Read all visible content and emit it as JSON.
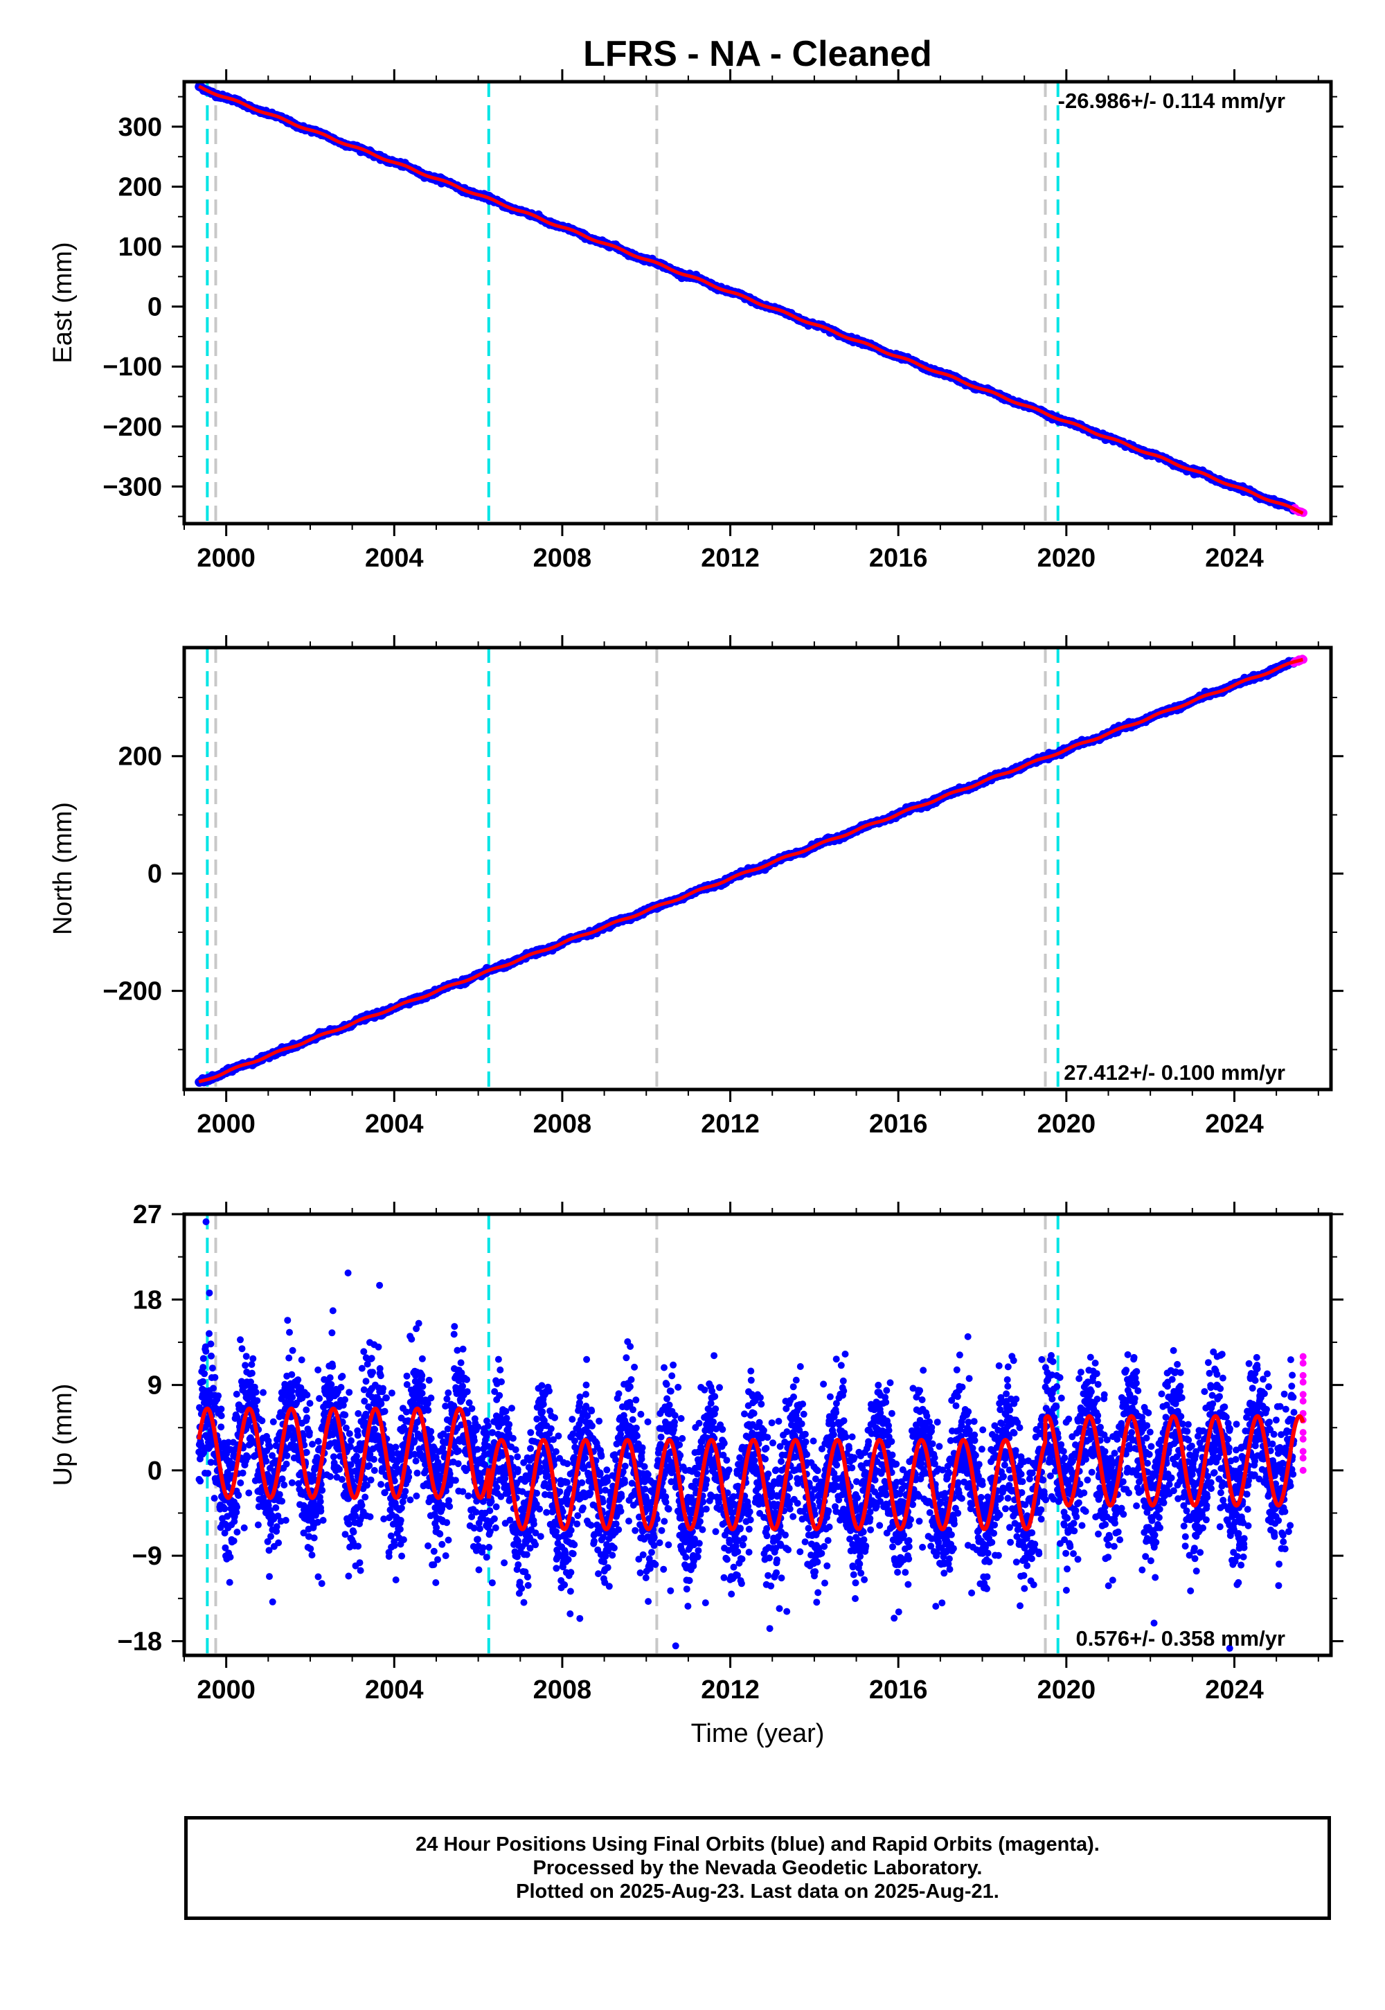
{
  "chart_data": {
    "type": "scatter",
    "title": "LFRS  - NA - Cleaned",
    "xlabel": "Time (year)",
    "xlim": [
      1999.0,
      2026.3
    ],
    "x_ticks": [
      2000,
      2004,
      2008,
      2012,
      2016,
      2020,
      2024
    ],
    "x_tick_labels": [
      "2000",
      "2004",
      "2008",
      "2012",
      "2016",
      "2020",
      "2024"
    ],
    "data_start": 1999.35,
    "data_end": 2025.64,
    "rapid_start": 2025.42,
    "grid": false,
    "vertical_lines": [
      {
        "x": 1999.55,
        "color": "#00e5e5",
        "style": "dashed"
      },
      {
        "x": 1999.75,
        "color": "#c8c8c8",
        "style": "dashed"
      },
      {
        "x": 2006.25,
        "color": "#00e5e5",
        "style": "dashed"
      },
      {
        "x": 2010.25,
        "color": "#c8c8c8",
        "style": "dashed"
      },
      {
        "x": 2019.5,
        "color": "#c8c8c8",
        "style": "dashed"
      },
      {
        "x": 2019.8,
        "color": "#00e5e5",
        "style": "dashed"
      }
    ],
    "colors": {
      "final": "#0000ff",
      "rapid": "#ff00ff",
      "model": "#ff0000",
      "frame": "#000000"
    },
    "panels": [
      {
        "key": "east",
        "ylabel": "East (mm)",
        "ylim": [
          -362,
          375
        ],
        "y_ticks": [
          300,
          200,
          100,
          0,
          -100,
          -200,
          -300
        ],
        "y_tick_labels": [
          "300",
          "200",
          "100",
          "0",
          "−100",
          "−200",
          "−300"
        ],
        "rate_label": "-26.986+/- 0.114 mm/yr",
        "rate_position": "top-right",
        "start_value": 366,
        "end_value": -344,
        "noise": 1.6,
        "seasonal_amp": 1.5,
        "step_at": 2019.5,
        "step_size": 2
      },
      {
        "key": "north",
        "ylabel": "North (mm)",
        "ylim": [
          -368,
          385
        ],
        "y_ticks": [
          200,
          0,
          -200
        ],
        "y_tick_labels": [
          "200",
          "0",
          "−200"
        ],
        "rate_label": "27.412+/- 0.100 mm/yr",
        "rate_position": "bottom-right",
        "start_value": -356,
        "end_value": 366,
        "noise": 1.8,
        "seasonal_amp": 1.5,
        "step_at": 2019.5,
        "step_size": 3
      },
      {
        "key": "up",
        "ylabel": "Up (mm)",
        "ylim": [
          -19.5,
          27
        ],
        "y_ticks": [
          27,
          18,
          9,
          0,
          -9,
          -18
        ],
        "y_tick_labels": [
          "27",
          "18",
          "9",
          "0",
          "−9",
          "−18"
        ],
        "rate_label": "0.576+/- 0.358 mm/yr",
        "rate_position": "bottom-right",
        "seasonal_amp": 4.7,
        "noise": 3.6,
        "model_segments": [
          {
            "start": 1999.35,
            "end": 2006.25,
            "offset": 1.8
          },
          {
            "start": 2006.25,
            "end": 2019.5,
            "offset": -1.5
          },
          {
            "start": 2019.5,
            "end": 2025.64,
            "offset": 1.0
          }
        ],
        "rapid_values": [
          12,
          11,
          10,
          9,
          8,
          7,
          6,
          5,
          4,
          3,
          2,
          1,
          0
        ]
      }
    ]
  },
  "footer": {
    "line1": "24 Hour Positions Using Final Orbits (blue) and Rapid Orbits (magenta).",
    "line2": "Processed by the Nevada Geodetic Laboratory.",
    "line3": "Plotted on 2025-Aug-23. Last data on 2025-Aug-21."
  }
}
